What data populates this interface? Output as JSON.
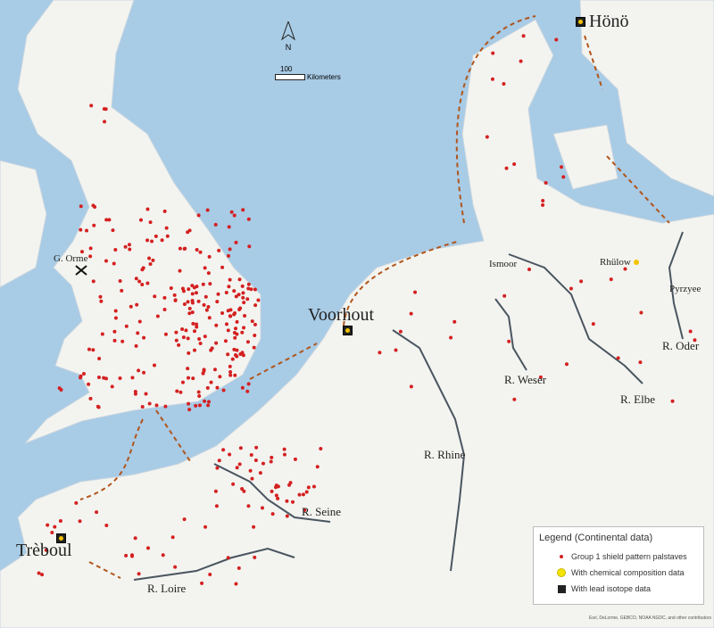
{
  "north_label": "N",
  "scale": {
    "value": "100",
    "unit": "Kilometers"
  },
  "sites": {
    "voorhout": "Voorhout",
    "hono": "Hönö",
    "treboul": "Trèboul"
  },
  "places": {
    "g_orme": "G. Orme",
    "ismoor": "Ismoor",
    "rhulow": "Rhülow",
    "pyrzyce": "Pyrzyee"
  },
  "rivers": {
    "oder": "R. Oder",
    "elbe": "R. Elbe",
    "weser": "R. Weser",
    "rhine": "R. Rhine",
    "seine": "R. Seine",
    "loire": "R. Loire"
  },
  "legend": {
    "title": "Legend (Continental data)",
    "items": [
      {
        "label": "Group 1 shield pattern palstaves",
        "symbol": "red-dot",
        "color": "#d42020"
      },
      {
        "label": "With chemical composition data",
        "symbol": "yellow-circle",
        "color": "#f4e400"
      },
      {
        "label": "With lead isotope data",
        "symbol": "black-square",
        "color": "#222222"
      }
    ]
  },
  "attribution": "Esri, DeLorme, GEBCO, NOAA NGDC, and other contributors",
  "colors": {
    "sea": "#a8cbe6",
    "land": "#f3f4f0",
    "find": "#d42020",
    "route": "#b0561c",
    "river": "#4a5560"
  }
}
